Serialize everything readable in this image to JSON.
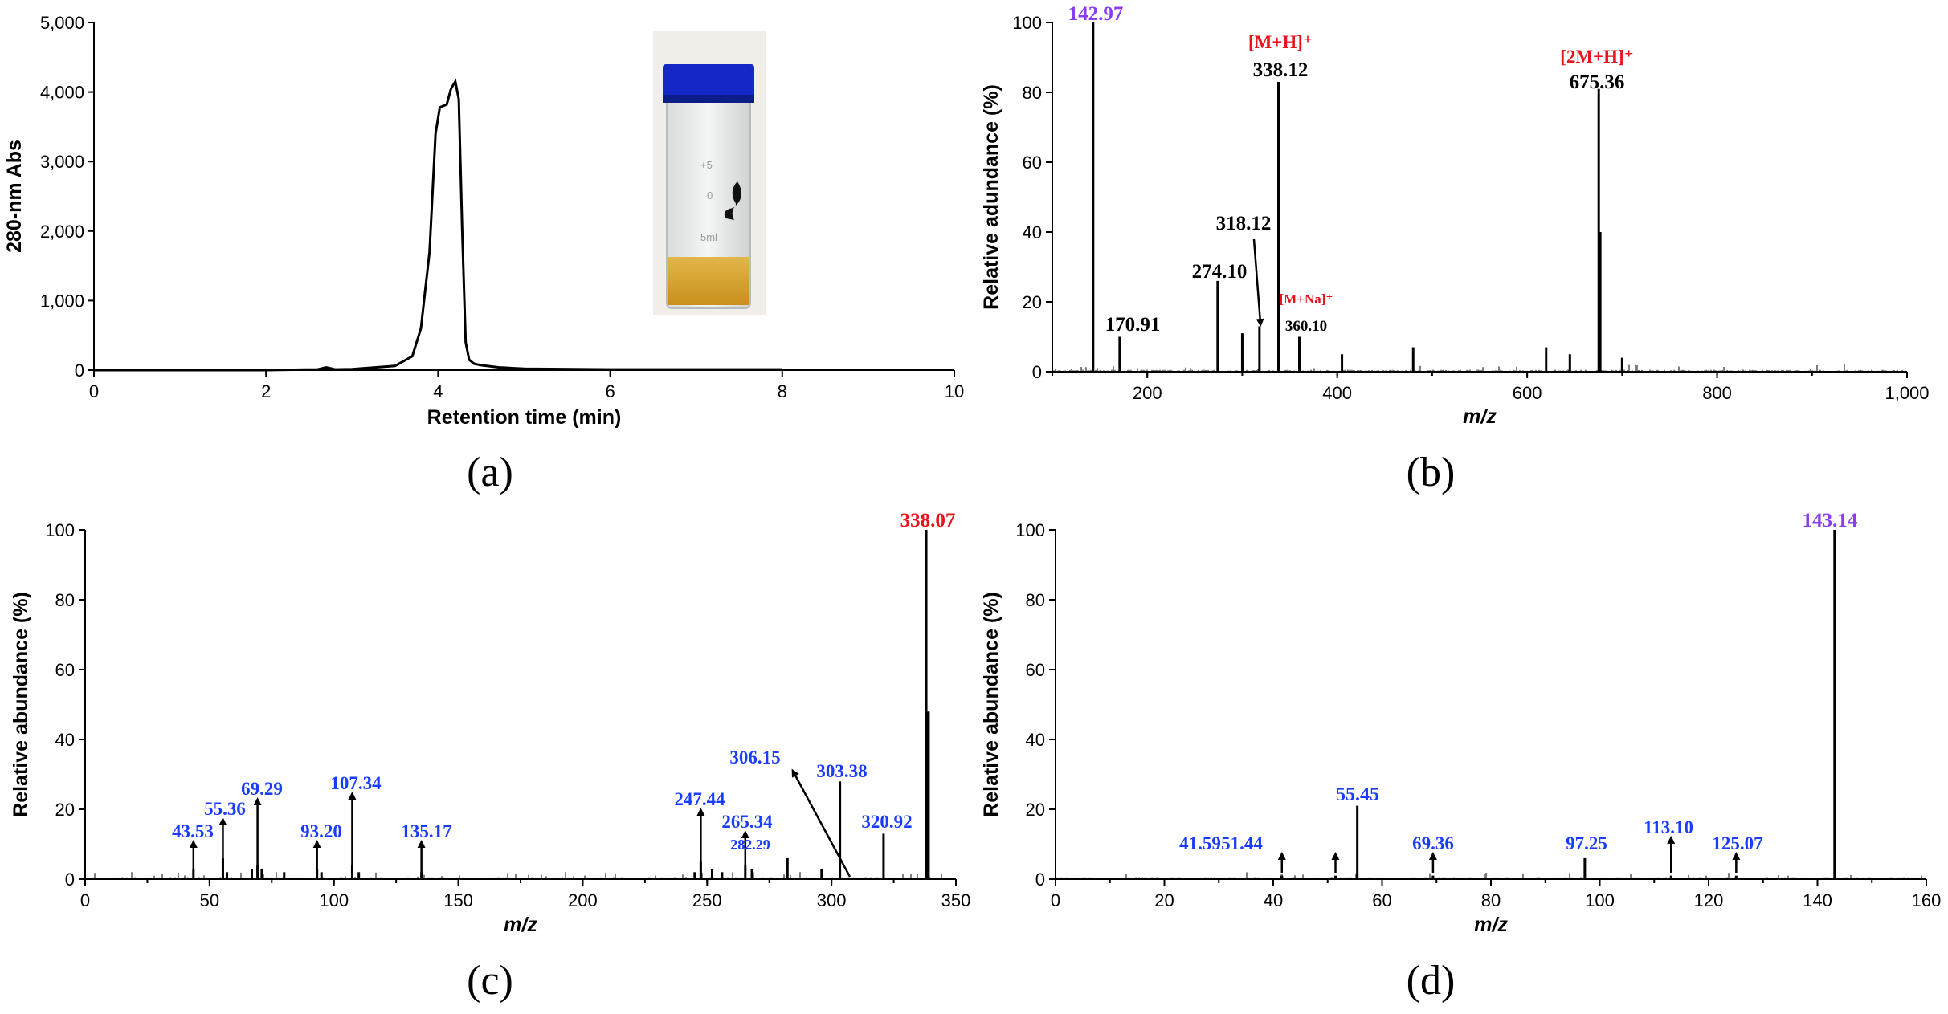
{
  "colors": {
    "black": "#000000",
    "blue": "#1a3cff",
    "red": "#e8141c",
    "purple": "#8a3cf0"
  },
  "chart_data": [
    {
      "panel": "(a)",
      "type": "line",
      "xlabel": "Retention time (min)",
      "ylabel": "280-nm Abs",
      "xlim": [
        0,
        10
      ],
      "ylim": [
        0,
        5000
      ],
      "xticks": [
        0,
        2,
        4,
        6,
        8,
        10
      ],
      "yticks": [
        0,
        1000,
        2000,
        3000,
        4000,
        5000
      ],
      "ytick_labels": [
        "0",
        "1,000",
        "2,000",
        "3,000",
        "4,000",
        "5,000"
      ],
      "series": [
        {
          "name": "280-nm Abs",
          "x": [
            0,
            1,
            2,
            2.6,
            2.7,
            2.8,
            3.0,
            3.5,
            3.7,
            3.8,
            3.9,
            3.97,
            4.02,
            4.1,
            4.15,
            4.2,
            4.24,
            4.28,
            4.32,
            4.36,
            4.42,
            4.5,
            4.7,
            5.0,
            6.0,
            7.0,
            8.0
          ],
          "y": [
            0,
            0,
            0,
            10,
            40,
            10,
            15,
            60,
            200,
            600,
            1700,
            3400,
            3780,
            3820,
            4050,
            4150,
            3900,
            2000,
            400,
            150,
            90,
            70,
            40,
            20,
            10,
            10,
            10
          ]
        }
      ]
    },
    {
      "panel": "(b)",
      "type": "bar",
      "xlabel": "m/z",
      "ylabel": "Relative adundance (%)",
      "xlim": [
        100,
        1000
      ],
      "ylim": [
        0,
        100
      ],
      "xticks": [
        200,
        400,
        600,
        800,
        1000
      ],
      "xtick_labels": [
        "200",
        "400",
        "600",
        "800",
        "1,000"
      ],
      "yticks": [
        0,
        20,
        40,
        60,
        80,
        100
      ],
      "peaks": {
        "x": [
          142.97,
          170.91,
          274.1,
          300,
          318.12,
          338.12,
          360.1,
          405,
          480,
          620,
          645,
          675.36,
          677,
          700
        ],
        "y": [
          100,
          10,
          26,
          11,
          13,
          83,
          10,
          5,
          7,
          7,
          5,
          81,
          40,
          4
        ]
      },
      "annotations": [
        {
          "text": "142.97",
          "x": 142.97,
          "color": "purple"
        },
        {
          "text": "170.91",
          "x": 170.91,
          "color": "black"
        },
        {
          "text": "274.10",
          "x": 274.1,
          "color": "black"
        },
        {
          "text": "318.12",
          "x": 318.12,
          "color": "black",
          "arrow": true
        },
        {
          "text": "[M+H]⁺",
          "x": 338.12,
          "color": "red"
        },
        {
          "text": "338.12",
          "x": 338.12,
          "color": "black"
        },
        {
          "text": "[M+Na]⁺",
          "x": 360.1,
          "color": "red"
        },
        {
          "text": "360.10",
          "x": 360.1,
          "color": "black"
        },
        {
          "text": "[2M+H]⁺",
          "x": 675.36,
          "color": "red"
        },
        {
          "text": "675.36",
          "x": 675.36,
          "color": "black"
        }
      ]
    },
    {
      "panel": "(c)",
      "type": "bar",
      "xlabel": "m/z",
      "ylabel": "Relative abundance (%)",
      "xlim": [
        0,
        350
      ],
      "ylim": [
        0,
        100
      ],
      "xticks": [
        0,
        50,
        100,
        150,
        200,
        250,
        300,
        350
      ],
      "yticks": [
        0,
        20,
        40,
        60,
        80,
        100
      ],
      "peaks": {
        "x": [
          43.53,
          55.36,
          69.29,
          93.2,
          107.34,
          135.17,
          247.44,
          265.34,
          282.29,
          303.38,
          320.92,
          338.07,
          339,
          57,
          67,
          71,
          80,
          95,
          110,
          245,
          252,
          256,
          268,
          296
        ],
        "y": [
          3,
          6,
          4,
          3,
          4,
          2,
          5,
          4,
          6,
          28,
          13,
          100,
          48,
          2,
          3,
          3,
          2,
          2,
          2,
          2,
          3,
          2,
          3,
          3
        ]
      },
      "annotations": [
        {
          "text": "43.53",
          "x": 43.53,
          "color": "blue",
          "arrow": true
        },
        {
          "text": "55.36",
          "x": 55.36,
          "color": "blue",
          "arrow": true
        },
        {
          "text": "69.29",
          "x": 69.29,
          "color": "blue",
          "arrow": true
        },
        {
          "text": "93.20",
          "x": 93.2,
          "color": "blue",
          "arrow": true
        },
        {
          "text": "107.34",
          "x": 107.34,
          "color": "blue",
          "arrow": true
        },
        {
          "text": "135.17",
          "x": 135.17,
          "color": "blue",
          "arrow": true
        },
        {
          "text": "247.44",
          "x": 247.44,
          "color": "blue",
          "arrow": true
        },
        {
          "text": "265.34",
          "x": 265.34,
          "color": "blue",
          "arrow": true
        },
        {
          "text": "282.29",
          "x": 282.29,
          "color": "blue"
        },
        {
          "text": "306.15",
          "x": 306.15,
          "color": "blue",
          "arrow": true
        },
        {
          "text": "303.38",
          "x": 303.38,
          "color": "blue"
        },
        {
          "text": "320.92",
          "x": 320.92,
          "color": "blue"
        },
        {
          "text": "338.07",
          "x": 338.07,
          "color": "red"
        }
      ]
    },
    {
      "panel": "(d)",
      "type": "bar",
      "xlabel": "m/z",
      "ylabel": "Relative abundance (%)",
      "xlim": [
        0,
        160
      ],
      "ylim": [
        0,
        100
      ],
      "xticks": [
        0,
        20,
        40,
        60,
        80,
        100,
        120,
        140,
        160
      ],
      "yticks": [
        0,
        20,
        40,
        60,
        80,
        100
      ],
      "peaks": {
        "x": [
          41.59,
          51.44,
          55.45,
          69.36,
          97.25,
          113.1,
          125.07,
          143.14
        ],
        "y": [
          1,
          1,
          21,
          1,
          6,
          1,
          1,
          100
        ]
      },
      "annotations": [
        {
          "text": "41.59",
          "x": 41.59,
          "color": "blue",
          "arrow": true
        },
        {
          "text": "51.44",
          "x": 51.44,
          "color": "blue",
          "arrow": true
        },
        {
          "text": "55.45",
          "x": 55.45,
          "color": "blue"
        },
        {
          "text": "69.36",
          "x": 69.36,
          "color": "blue",
          "arrow": true
        },
        {
          "text": "97.25",
          "x": 97.25,
          "color": "blue"
        },
        {
          "text": "113.10",
          "x": 113.1,
          "color": "blue",
          "arrow": true
        },
        {
          "text": "125.07",
          "x": 125.07,
          "color": "blue",
          "arrow": true
        },
        {
          "text": "143.14",
          "x": 143.14,
          "color": "purple"
        }
      ]
    }
  ]
}
